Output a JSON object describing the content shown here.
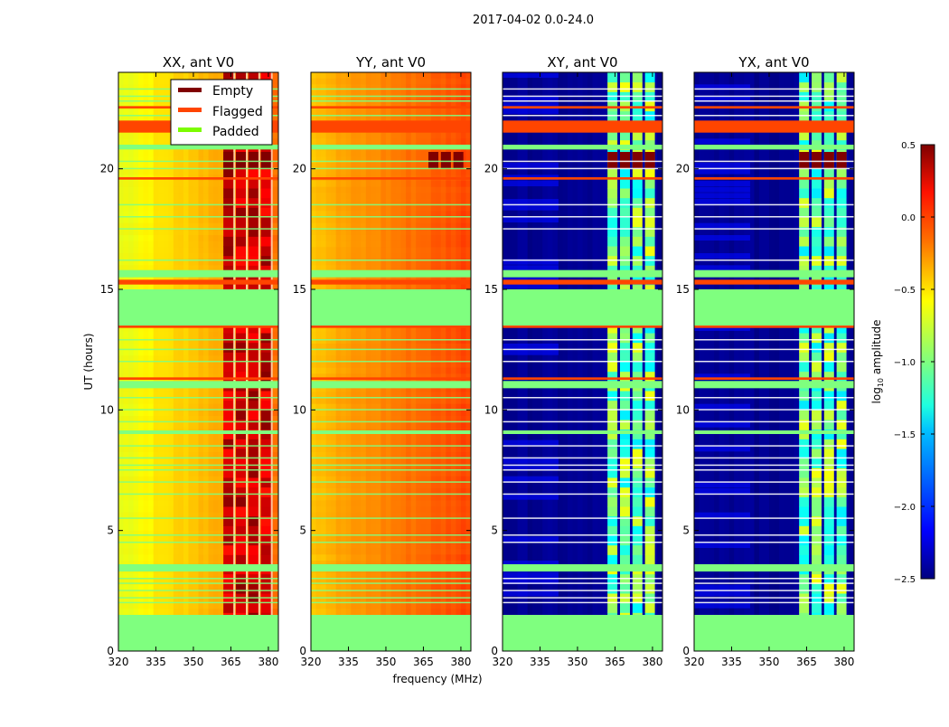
{
  "suptitle": "2017-04-02 0.0-24.0",
  "chart_data": {
    "type": "heatmap",
    "xlabel": "frequency (MHz)",
    "ylabel": "UT (hours)",
    "xlim": [
      320,
      384
    ],
    "ylim": [
      0,
      24
    ],
    "xticks": [
      320,
      335,
      350,
      365,
      380
    ],
    "yticks": [
      0,
      5,
      10,
      15,
      20
    ],
    "panels": [
      {
        "title": "XX, ant V0",
        "style": "parallel",
        "base_left": -0.7,
        "base_right": -0.15,
        "hot_value": 0.2
      },
      {
        "title": "YY, ant V0",
        "style": "parallel_flat",
        "base_left": -0.45,
        "base_right": -0.05,
        "hot_value": 0.0
      },
      {
        "title": "XY, ant V0",
        "style": "cross",
        "base_left": -2.45,
        "base_right": -2.45,
        "hot_value": -1.2
      },
      {
        "title": "YX, ant V0",
        "style": "cross",
        "base_left": -2.45,
        "base_right": -2.45,
        "hot_value": -1.2
      }
    ],
    "hot_channels_mhz": [
      364,
      369,
      374,
      379
    ],
    "padded_ranges_hours": [
      [
        0,
        1.5
      ],
      [
        3.3,
        3.6
      ],
      [
        9.0,
        9.15
      ],
      [
        10.9,
        11.2
      ],
      [
        13.5,
        15.0
      ],
      [
        15.5,
        15.8
      ],
      [
        20.8,
        21.0
      ]
    ],
    "padded_lines_hours": [
      2.0,
      2.2,
      2.5,
      2.8,
      3.0,
      4.5,
      4.8,
      5.5,
      6.5,
      7.0,
      7.5,
      7.7,
      8.0,
      8.5,
      9.5,
      10.0,
      10.5,
      12.0,
      12.5,
      12.9,
      16.2,
      17.5,
      18.0,
      18.5,
      20.0,
      20.3,
      22.2,
      22.8,
      23.0,
      23.3
    ],
    "flagged_ranges_hours": [
      [
        11.25,
        11.35
      ],
      [
        13.4,
        13.5
      ],
      [
        15.2,
        15.4
      ],
      [
        19.55,
        19.65
      ],
      [
        21.5,
        22.0
      ],
      [
        22.5,
        22.6
      ]
    ],
    "empty_block": {
      "freq_mhz": [
        363,
        381
      ],
      "hours": [
        20.0,
        20.7
      ]
    },
    "legend": {
      "position": "top-right of first panel",
      "entries": [
        {
          "label": "Empty",
          "color": "#800000"
        },
        {
          "label": "Flagged",
          "color": "#ff4500"
        },
        {
          "label": "Padded",
          "color": "#7cfc00"
        }
      ]
    },
    "colorbar": {
      "label": "log10 amplitude",
      "label_main": "log",
      "label_sub": "10",
      "label_rest": " amplitude",
      "range": [
        -2.5,
        0.5
      ],
      "ticks": [
        "0.5",
        "0.0",
        "−0.5",
        "−1.0",
        "−1.5",
        "−2.0",
        "−2.5"
      ],
      "tick_values": [
        0.5,
        0.0,
        -0.5,
        -1.0,
        -1.5,
        -2.0,
        -2.5
      ],
      "colormap": "jet"
    }
  }
}
